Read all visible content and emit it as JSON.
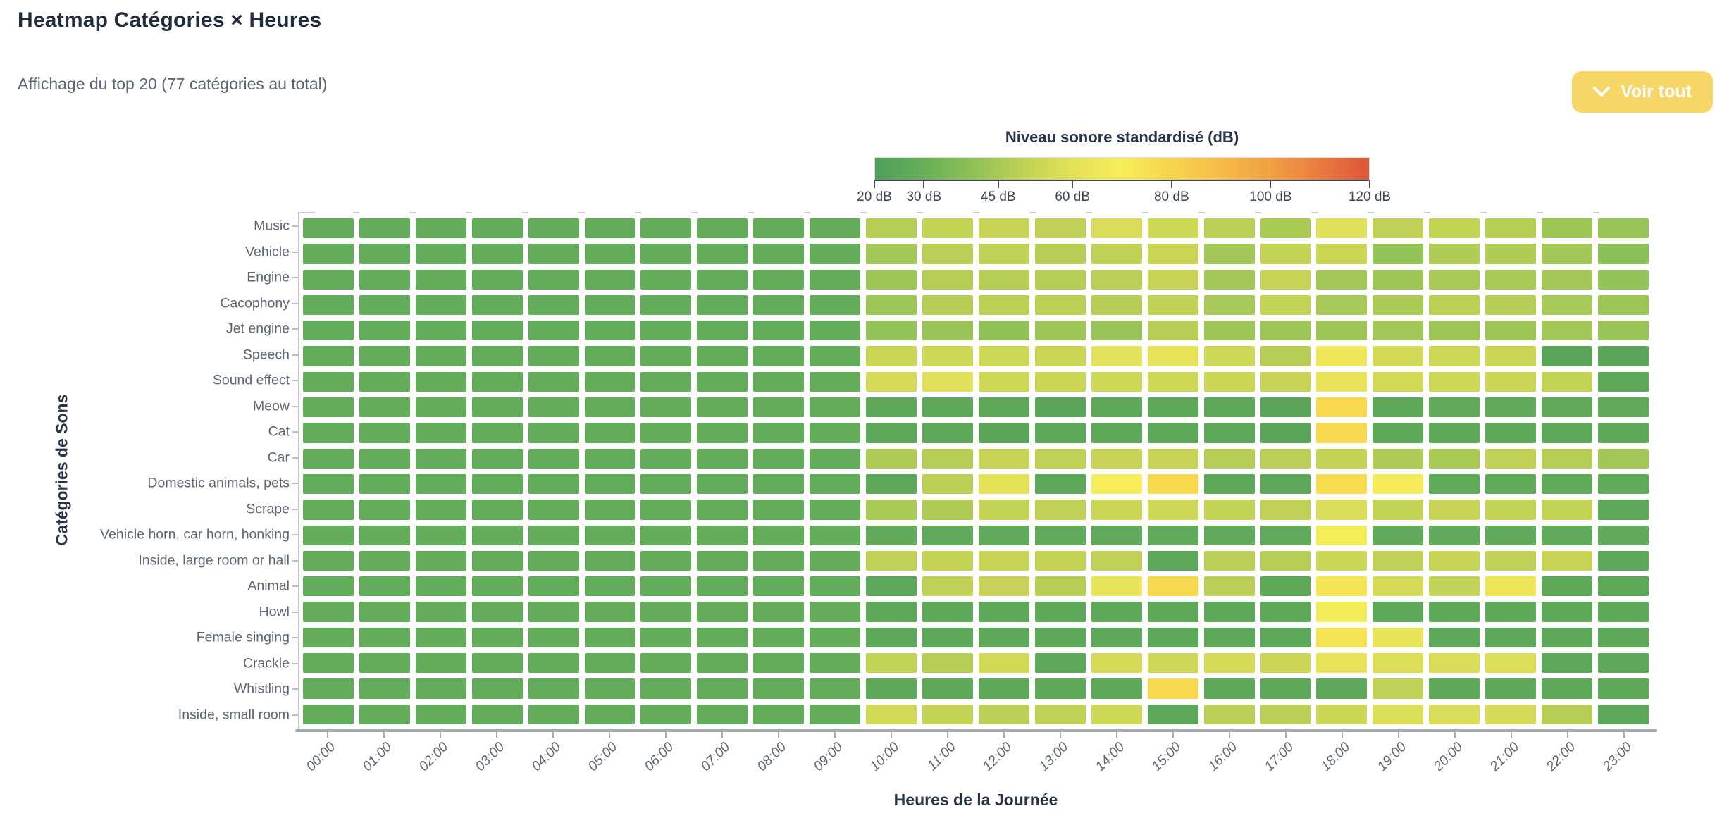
{
  "header": {
    "title": "Heatmap Catégories × Heures",
    "subtitle": "Affichage du top 20 (77 catégories au total)",
    "view_all_button": "Voir tout"
  },
  "legend": {
    "title": "Niveau sonore standardisé (dB)",
    "tick_values": [
      20,
      30,
      45,
      60,
      80,
      100,
      120
    ],
    "tick_labels": [
      "20 dB",
      "30 dB",
      "45 dB",
      "60 dB",
      "80 dB",
      "100 dB",
      "120 dB"
    ]
  },
  "colors": {
    "button_bg": "#f5d667",
    "base_green": "#63AB58",
    "max_red": "#DB5639"
  },
  "chart_data": {
    "type": "heatmap",
    "title": "Heatmap Catégories × Heures",
    "xlabel": "Heures de la Journée",
    "ylabel": "Catégories de Sons",
    "unit": "dB",
    "value_range": [
      20,
      120
    ],
    "x": [
      "00:00",
      "01:00",
      "02:00",
      "03:00",
      "04:00",
      "05:00",
      "06:00",
      "07:00",
      "08:00",
      "09:00",
      "10:00",
      "11:00",
      "12:00",
      "13:00",
      "14:00",
      "15:00",
      "16:00",
      "17:00",
      "18:00",
      "19:00",
      "20:00",
      "21:00",
      "22:00",
      "23:00"
    ],
    "y": [
      "Music",
      "Vehicle",
      "Engine",
      "Cacophony",
      "Jet engine",
      "Speech",
      "Sound effect",
      "Meow",
      "Cat",
      "Car",
      "Domestic animals, pets",
      "Scrape",
      "Vehicle horn, car horn, honking",
      "Inside, large room or hall",
      "Animal",
      "Howl",
      "Female singing",
      "Crackle",
      "Whistling",
      "Inside, small room"
    ],
    "colorscale": [
      [
        20,
        "#509E5C"
      ],
      [
        30,
        "#68AF58"
      ],
      [
        40,
        "#8FC157"
      ],
      [
        50,
        "#C0D156"
      ],
      [
        58,
        "#DCDE58"
      ],
      [
        65,
        "#F0E75C"
      ],
      [
        70,
        "#F6EE58"
      ],
      [
        78,
        "#F7D94F"
      ],
      [
        90,
        "#F4BC49"
      ],
      [
        100,
        "#F0A145"
      ],
      [
        110,
        "#E87C40"
      ],
      [
        120,
        "#DB5639"
      ]
    ],
    "values": [
      [
        28,
        28,
        28,
        28,
        28,
        28,
        28,
        28,
        28,
        28,
        48,
        51,
        52,
        50,
        57,
        54,
        49,
        46,
        59,
        50,
        51,
        48,
        43,
        42
      ],
      [
        28,
        28,
        28,
        28,
        28,
        28,
        28,
        28,
        28,
        28,
        44,
        49,
        50,
        48,
        50,
        53,
        44,
        51,
        53,
        41,
        47,
        47,
        44,
        39
      ],
      [
        28,
        28,
        28,
        28,
        28,
        28,
        28,
        28,
        28,
        28,
        43,
        48,
        48,
        48,
        49,
        52,
        44,
        52,
        44,
        43,
        45,
        45,
        44,
        41
      ],
      [
        28,
        28,
        28,
        28,
        28,
        28,
        28,
        28,
        28,
        28,
        43,
        48,
        49,
        49,
        48,
        50,
        45,
        51,
        45,
        46,
        49,
        48,
        45,
        43
      ],
      [
        28,
        28,
        28,
        28,
        28,
        28,
        28,
        28,
        28,
        28,
        41,
        42,
        40,
        43,
        42,
        48,
        43,
        43,
        43,
        44,
        43,
        43,
        44,
        42
      ],
      [
        28,
        28,
        28,
        28,
        28,
        28,
        28,
        28,
        28,
        28,
        53,
        54,
        54,
        53,
        60,
        62,
        54,
        48,
        65,
        55,
        54,
        53,
        24,
        24
      ],
      [
        28,
        28,
        28,
        28,
        28,
        28,
        28,
        28,
        28,
        28,
        56,
        59,
        54,
        53,
        54,
        54,
        53,
        52,
        63,
        55,
        54,
        53,
        51,
        26
      ],
      [
        28,
        28,
        28,
        28,
        28,
        28,
        28,
        28,
        28,
        28,
        26,
        25,
        25,
        24,
        25,
        26,
        25,
        24,
        78,
        26,
        27,
        27,
        27,
        27
      ],
      [
        28,
        28,
        28,
        28,
        28,
        28,
        28,
        28,
        28,
        28,
        25,
        25,
        24,
        25,
        25,
        25,
        25,
        24,
        78,
        26,
        26,
        26,
        25,
        26
      ],
      [
        28,
        28,
        28,
        28,
        28,
        28,
        28,
        28,
        28,
        28,
        47,
        48,
        52,
        50,
        52,
        52,
        48,
        49,
        51,
        47,
        46,
        50,
        48,
        44
      ],
      [
        28,
        28,
        28,
        28,
        28,
        28,
        28,
        28,
        28,
        28,
        26,
        49,
        61,
        25,
        69,
        78,
        26,
        25,
        76,
        68,
        27,
        27,
        27,
        27
      ],
      [
        28,
        28,
        28,
        28,
        28,
        28,
        28,
        28,
        28,
        28,
        46,
        47,
        51,
        50,
        53,
        54,
        51,
        50,
        57,
        51,
        52,
        51,
        51,
        26
      ],
      [
        28,
        28,
        28,
        28,
        28,
        28,
        28,
        28,
        28,
        28,
        27,
        27,
        27,
        27,
        27,
        27,
        27,
        27,
        70,
        27,
        27,
        27,
        27,
        27
      ],
      [
        28,
        28,
        28,
        28,
        28,
        28,
        28,
        28,
        28,
        28,
        50,
        51,
        52,
        51,
        50,
        25,
        49,
        48,
        53,
        50,
        52,
        50,
        52,
        25
      ],
      [
        28,
        28,
        28,
        28,
        28,
        28,
        28,
        28,
        28,
        28,
        25,
        50,
        52,
        48,
        63,
        78,
        49,
        26,
        73,
        56,
        51,
        64,
        26,
        26
      ],
      [
        28,
        28,
        28,
        28,
        28,
        28,
        28,
        28,
        28,
        28,
        26,
        26,
        26,
        26,
        26,
        26,
        26,
        26,
        68,
        26,
        26,
        26,
        26,
        26
      ],
      [
        28,
        28,
        28,
        28,
        28,
        28,
        28,
        28,
        28,
        28,
        26,
        26,
        26,
        26,
        26,
        26,
        26,
        25,
        74,
        63,
        25,
        26,
        26,
        26
      ],
      [
        28,
        28,
        28,
        28,
        28,
        28,
        28,
        28,
        28,
        28,
        51,
        48,
        55,
        25,
        56,
        54,
        56,
        53,
        62,
        58,
        57,
        58,
        25,
        25
      ],
      [
        28,
        28,
        28,
        28,
        28,
        28,
        28,
        28,
        28,
        28,
        26,
        26,
        26,
        26,
        26,
        78,
        26,
        26,
        25,
        50,
        26,
        26,
        26,
        26
      ],
      [
        28,
        28,
        28,
        28,
        28,
        28,
        28,
        28,
        28,
        28,
        55,
        51,
        49,
        50,
        54,
        25,
        49,
        49,
        53,
        58,
        57,
        56,
        48,
        25
      ]
    ]
  }
}
